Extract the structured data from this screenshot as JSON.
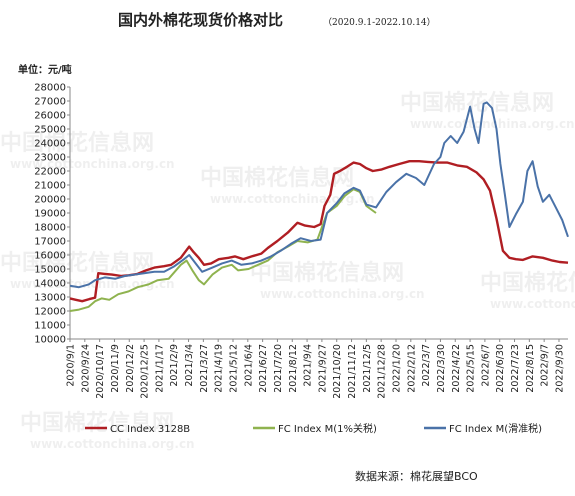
{
  "chart_data": {
    "type": "line",
    "title": "国内外棉花现货价格对比",
    "subtitle": "（2020.9.1-2022.10.14）",
    "ylabel": "单位：元/吨",
    "ylim": [
      10000,
      28000
    ],
    "yticks": [
      10000,
      11000,
      12000,
      13000,
      14000,
      15000,
      16000,
      17000,
      18000,
      19000,
      20000,
      21000,
      22000,
      23000,
      24000,
      25000,
      26000,
      27000,
      28000
    ],
    "x_range": [
      "2020/9/1",
      "2022/10/14"
    ],
    "xticks": [
      "2020/9/1",
      "2020/9/24",
      "2020/10/17",
      "2020/11/9",
      "2020/12/2",
      "2020/12/25",
      "2021/1/17",
      "2021/2/9",
      "2021/3/4",
      "2021/3/27",
      "2021/4/19",
      "2021/5/12",
      "2021/6/4",
      "2021/6/27",
      "2021/7/20",
      "2021/8/12",
      "2021/9/4",
      "2021/9/27",
      "2021/10/20",
      "2021/11/12",
      "2021/12/5",
      "2021/12/28",
      "2022/1/20",
      "2022/2/12",
      "2022/3/7",
      "2022/3/30",
      "2022/4/22",
      "2022/5/15",
      "2022/6/7",
      "2022/6/30",
      "2022/7/23",
      "2022/8/15",
      "2022/9/7",
      "2022/9/30"
    ],
    "grid": false,
    "legend_position": "bottom",
    "series": [
      {
        "name": "CC Index 3128B",
        "color": "#b01e23",
        "points": [
          [
            "2020/9/1",
            12900
          ],
          [
            "2020/9/10",
            12800
          ],
          [
            "2020/9/20",
            12700
          ],
          [
            "2020/10/1",
            12850
          ],
          [
            "2020/10/10",
            12950
          ],
          [
            "2020/10/15",
            14700
          ],
          [
            "2020/10/25",
            14650
          ],
          [
            "2020/11/5",
            14600
          ],
          [
            "2020/11/20",
            14500
          ],
          [
            "2020/12/1",
            14550
          ],
          [
            "2020/12/15",
            14650
          ],
          [
            "2020/12/28",
            14900
          ],
          [
            "2021/1/10",
            15100
          ],
          [
            "2021/1/25",
            15200
          ],
          [
            "2021/2/5",
            15300
          ],
          [
            "2021/2/20",
            15800
          ],
          [
            "2021/2/28",
            16300
          ],
          [
            "2021/3/5",
            16600
          ],
          [
            "2021/3/12",
            16200
          ],
          [
            "2021/3/20",
            15800
          ],
          [
            "2021/3/28",
            15300
          ],
          [
            "2021/4/8",
            15400
          ],
          [
            "2021/4/20",
            15700
          ],
          [
            "2021/5/5",
            15800
          ],
          [
            "2021/5/15",
            15900
          ],
          [
            "2021/5/28",
            15700
          ],
          [
            "2021/6/10",
            15900
          ],
          [
            "2021/6/25",
            16100
          ],
          [
            "2021/7/5",
            16500
          ],
          [
            "2021/7/20",
            17000
          ],
          [
            "2021/8/5",
            17600
          ],
          [
            "2021/8/20",
            18300
          ],
          [
            "2021/9/1",
            18100
          ],
          [
            "2021/9/15",
            18000
          ],
          [
            "2021/9/25",
            18200
          ],
          [
            "2021/10/1",
            19500
          ],
          [
            "2021/10/10",
            20300
          ],
          [
            "2021/10/16",
            21800
          ],
          [
            "2021/10/25",
            22000
          ],
          [
            "2021/11/5",
            22300
          ],
          [
            "2021/11/15",
            22600
          ],
          [
            "2021/11/25",
            22500
          ],
          [
            "2021/12/5",
            22200
          ],
          [
            "2021/12/15",
            22000
          ],
          [
            "2021/12/28",
            22100
          ],
          [
            "2022/1/10",
            22300
          ],
          [
            "2022/1/25",
            22500
          ],
          [
            "2022/2/10",
            22700
          ],
          [
            "2022/2/25",
            22700
          ],
          [
            "2022/3/10",
            22650
          ],
          [
            "2022/3/25",
            22600
          ],
          [
            "2022/4/10",
            22600
          ],
          [
            "2022/4/25",
            22400
          ],
          [
            "2022/5/10",
            22300
          ],
          [
            "2022/5/25",
            21900
          ],
          [
            "2022/6/5",
            21400
          ],
          [
            "2022/6/15",
            20600
          ],
          [
            "2022/6/25",
            18600
          ],
          [
            "2022/7/5",
            16300
          ],
          [
            "2022/7/15",
            15800
          ],
          [
            "2022/7/25",
            15700
          ],
          [
            "2022/8/5",
            15650
          ],
          [
            "2022/8/20",
            15900
          ],
          [
            "2022/9/5",
            15800
          ],
          [
            "2022/9/20",
            15600
          ],
          [
            "2022/10/1",
            15500
          ],
          [
            "2022/10/14",
            15450
          ]
        ]
      },
      {
        "name": "FC Index M(1%关税)",
        "color": "#8fb34f",
        "points": [
          [
            "2020/9/1",
            12000
          ],
          [
            "2020/9/15",
            12100
          ],
          [
            "2020/9/30",
            12300
          ],
          [
            "2020/10/10",
            12700
          ],
          [
            "2020/10/20",
            12900
          ],
          [
            "2020/11/1",
            12800
          ],
          [
            "2020/11/15",
            13200
          ],
          [
            "2020/12/1",
            13400
          ],
          [
            "2020/12/15",
            13700
          ],
          [
            "2021/1/1",
            13900
          ],
          [
            "2021/1/15",
            14200
          ],
          [
            "2021/2/1",
            14300
          ],
          [
            "2021/2/20",
            15300
          ],
          [
            "2021/3/1",
            15600
          ],
          [
            "2021/3/10",
            14900
          ],
          [
            "2021/3/20",
            14200
          ],
          [
            "2021/3/28",
            13900
          ],
          [
            "2021/4/10",
            14600
          ],
          [
            "2021/4/25",
            15100
          ],
          [
            "2021/5/10",
            15300
          ],
          [
            "2021/5/20",
            14900
          ],
          [
            "2021/6/5",
            15000
          ],
          [
            "2021/6/20",
            15300
          ],
          [
            "2021/7/5",
            15600
          ],
          [
            "2021/7/20",
            16200
          ],
          [
            "2021/8/5",
            16600
          ],
          [
            "2021/8/20",
            17000
          ],
          [
            "2021/9/5",
            16900
          ],
          [
            "2021/9/20",
            17100
          ],
          [
            "2021/10/5",
            19000
          ],
          [
            "2021/10/20",
            19500
          ],
          [
            "2021/11/1",
            20200
          ],
          [
            "2021/11/15",
            20700
          ],
          [
            "2021/11/25",
            20500
          ],
          [
            "2021/12/5",
            19500
          ],
          [
            "2021/12/20",
            19000
          ]
        ]
      },
      {
        "name": "FC Index M(滑准税)",
        "color": "#4a72a8",
        "points": [
          [
            "2020/9/1",
            13800
          ],
          [
            "2020/9/15",
            13700
          ],
          [
            "2020/9/30",
            13900
          ],
          [
            "2020/10/10",
            14200
          ],
          [
            "2020/10/25",
            14400
          ],
          [
            "2020/11/10",
            14300
          ],
          [
            "2020/11/25",
            14500
          ],
          [
            "2020/12/10",
            14600
          ],
          [
            "2020/12/25",
            14700
          ],
          [
            "2021/1/10",
            14800
          ],
          [
            "2021/1/25",
            14800
          ],
          [
            "2021/2/10",
            15200
          ],
          [
            "2021/2/25",
            15700
          ],
          [
            "2021/3/5",
            16000
          ],
          [
            "2021/3/15",
            15400
          ],
          [
            "2021/3/25",
            14800
          ],
          [
            "2021/4/10",
            15100
          ],
          [
            "2021/4/25",
            15400
          ],
          [
            "2021/5/10",
            15600
          ],
          [
            "2021/5/25",
            15300
          ],
          [
            "2021/6/10",
            15400
          ],
          [
            "2021/6/25",
            15600
          ],
          [
            "2021/7/10",
            15900
          ],
          [
            "2021/7/25",
            16300
          ],
          [
            "2021/8/10",
            16800
          ],
          [
            "2021/8/25",
            17200
          ],
          [
            "2021/9/10",
            17000
          ],
          [
            "2021/9/25",
            17100
          ],
          [
            "2021/10/5",
            19000
          ],
          [
            "2021/10/20",
            19700
          ],
          [
            "2021/11/1",
            20400
          ],
          [
            "2021/11/15",
            20800
          ],
          [
            "2021/11/25",
            20600
          ],
          [
            "2021/12/5",
            19600
          ],
          [
            "2021/12/20",
            19400
          ],
          [
            "2022/1/5",
            20500
          ],
          [
            "2022/1/20",
            21200
          ],
          [
            "2022/2/5",
            21800
          ],
          [
            "2022/2/20",
            21500
          ],
          [
            "2022/3/5",
            21000
          ],
          [
            "2022/3/20",
            22500
          ],
          [
            "2022/3/30",
            23000
          ],
          [
            "2022/4/5",
            24000
          ],
          [
            "2022/4/15",
            24500
          ],
          [
            "2022/4/25",
            24000
          ],
          [
            "2022/5/5",
            24800
          ],
          [
            "2022/5/15",
            26600
          ],
          [
            "2022/5/22",
            25000
          ],
          [
            "2022/5/28",
            24000
          ],
          [
            "2022/6/5",
            26800
          ],
          [
            "2022/6/10",
            26900
          ],
          [
            "2022/6/18",
            26500
          ],
          [
            "2022/6/25",
            25000
          ],
          [
            "2022/7/1",
            22500
          ],
          [
            "2022/7/8",
            20300
          ],
          [
            "2022/7/15",
            18000
          ],
          [
            "2022/7/25",
            18900
          ],
          [
            "2022/8/5",
            19800
          ],
          [
            "2022/8/12",
            22000
          ],
          [
            "2022/8/20",
            22700
          ],
          [
            "2022/8/28",
            20900
          ],
          [
            "2022/9/5",
            19800
          ],
          [
            "2022/9/15",
            20300
          ],
          [
            "2022/9/25",
            19400
          ],
          [
            "2022/10/5",
            18500
          ],
          [
            "2022/10/14",
            17300
          ]
        ]
      }
    ],
    "source": "数据来源：棉花展望BCO"
  },
  "watermarks": [
    "中国棉花信息网",
    "www.cottonchina.org.cn"
  ]
}
